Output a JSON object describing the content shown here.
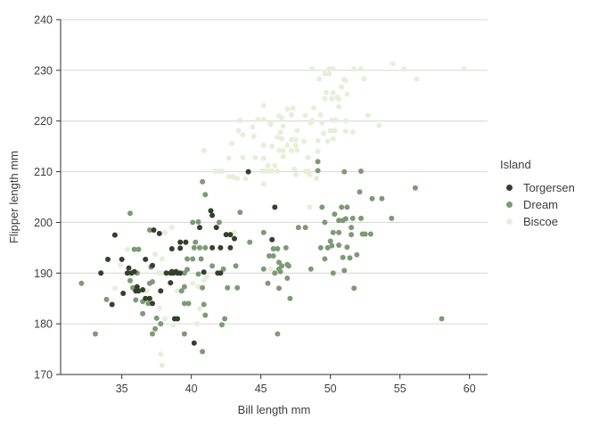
{
  "colors": {
    "background": "#ffffff",
    "grid": "#d6d6d6",
    "axis": "#2f2f2f",
    "text": "#3d3d3d",
    "torgersen": "#33402c",
    "dream": "#7d9a76",
    "biscoe": "#e5efd9"
  },
  "chart_data": {
    "type": "scatter",
    "title": "",
    "xlabel": "Bill length mm",
    "ylabel": "Flipper length mm",
    "xlim": [
      30.6,
      61.3
    ],
    "ylim": [
      170,
      240
    ],
    "x_ticks": [
      35,
      40,
      45,
      50,
      55,
      60
    ],
    "y_ticks": [
      170,
      180,
      190,
      200,
      210,
      220,
      230,
      240
    ],
    "grid": "horizontal-major-only",
    "point_radius_px": 3,
    "legend": {
      "title": "Island",
      "position": "right",
      "entries": [
        {
          "label": "Torgersen",
          "color": "#33402c"
        },
        {
          "label": "Dream",
          "color": "#7d9a76"
        },
        {
          "label": "Biscoe",
          "color": "#e5efd9"
        }
      ]
    },
    "series": [
      {
        "name": "Torgersen",
        "color": "#33402c",
        "points": [
          [
            34.5,
            197.5
          ],
          [
            37.3,
            198.5
          ],
          [
            37.7,
            197.8
          ],
          [
            40.6,
            199.0
          ],
          [
            39.2,
            196.1
          ],
          [
            39.6,
            196.1
          ],
          [
            38.6,
            194.8
          ],
          [
            39.2,
            194.9
          ],
          [
            34.0,
            192.7
          ],
          [
            35.0,
            192.7
          ],
          [
            36.7,
            192.7
          ],
          [
            37.2,
            191.5
          ],
          [
            44.1,
            210.0
          ],
          [
            41.4,
            202.3
          ],
          [
            41.5,
            201.4
          ],
          [
            46.0,
            203.0
          ],
          [
            41.8,
            199.0
          ],
          [
            42.5,
            197.6
          ],
          [
            42.8,
            197.6
          ],
          [
            43.1,
            196.8
          ],
          [
            41.5,
            195.0
          ],
          [
            42.1,
            195.0
          ],
          [
            42.8,
            195.0
          ],
          [
            45.8,
            196.6
          ],
          [
            33.5,
            190.0
          ],
          [
            35.4,
            190.0
          ],
          [
            35.7,
            190.0
          ],
          [
            35.9,
            190.3
          ],
          [
            35.5,
            191.0
          ],
          [
            38.6,
            190.3
          ],
          [
            38.9,
            190.3
          ],
          [
            38.2,
            190.0
          ],
          [
            38.5,
            190.0
          ],
          [
            38.7,
            190.0
          ],
          [
            39.0,
            190.0
          ],
          [
            39.2,
            190.0
          ],
          [
            35.1,
            186.0
          ],
          [
            36.0,
            186.5
          ],
          [
            36.2,
            186.5
          ],
          [
            36.1,
            187.3
          ],
          [
            34.3,
            183.8
          ],
          [
            36.5,
            186.7
          ],
          [
            37.8,
            186.5
          ],
          [
            38.5,
            188.1
          ],
          [
            36.7,
            185.0
          ],
          [
            37.0,
            185.0
          ],
          [
            37.2,
            184.0
          ],
          [
            38.8,
            181.0
          ],
          [
            39.0,
            181.0
          ],
          [
            40.2,
            176.2
          ],
          [
            40.9,
            190.2
          ],
          [
            41.9,
            190.0
          ],
          [
            42.1,
            190.0
          ]
        ]
      },
      {
        "name": "Dream",
        "color": "#7d9a76",
        "points": [
          [
            35.6,
            201.8
          ],
          [
            37.0,
            198.5
          ],
          [
            40.1,
            200.0
          ],
          [
            40.5,
            200.1
          ],
          [
            40.8,
            208.0
          ],
          [
            40.3,
            196.1
          ],
          [
            40.2,
            195.0
          ],
          [
            40.6,
            195.0
          ],
          [
            35.9,
            194.7
          ],
          [
            36.2,
            194.7
          ],
          [
            39.7,
            192.8
          ],
          [
            40.1,
            192.8
          ],
          [
            40.7,
            192.8
          ],
          [
            37.1,
            191.2
          ],
          [
            49.1,
            212.0
          ],
          [
            49.1,
            210.2
          ],
          [
            41.0,
            205.5
          ],
          [
            43.5,
            202.0
          ],
          [
            49.4,
            203.0
          ],
          [
            50.8,
            203.0
          ],
          [
            50.3,
            201.6
          ],
          [
            50.6,
            200.4
          ],
          [
            50.9,
            200.4
          ],
          [
            42.0,
            200.0
          ],
          [
            47.7,
            199.0
          ],
          [
            48.2,
            199.0
          ],
          [
            49.6,
            200.0
          ],
          [
            41.0,
            195.0
          ],
          [
            44.2,
            196.1
          ],
          [
            45.2,
            198.0
          ],
          [
            45.9,
            194.8
          ],
          [
            46.2,
            194.8
          ],
          [
            45.6,
            193.4
          ],
          [
            45.9,
            193.4
          ],
          [
            46.8,
            195.0
          ],
          [
            49.3,
            195.0
          ],
          [
            49.8,
            195.0
          ],
          [
            50.1,
            195.4
          ],
          [
            50.2,
            198.0
          ],
          [
            50.6,
            198.0
          ],
          [
            50.0,
            196.3
          ],
          [
            50.6,
            195.5
          ],
          [
            46.3,
            192.1
          ],
          [
            46.9,
            191.7
          ],
          [
            49.6,
            192.8
          ],
          [
            50.9,
            193.1
          ],
          [
            51.0,
            210.0
          ],
          [
            52.2,
            210.1
          ],
          [
            56.1,
            206.8
          ],
          [
            52.1,
            206.0
          ],
          [
            53.0,
            204.7
          ],
          [
            53.7,
            204.7
          ],
          [
            51.2,
            203.0
          ],
          [
            51.1,
            200.7
          ],
          [
            51.6,
            200.8
          ],
          [
            52.2,
            200.8
          ],
          [
            54.4,
            200.8
          ],
          [
            51.5,
            199.0
          ],
          [
            51.5,
            197.6
          ],
          [
            52.3,
            197.7
          ],
          [
            52.5,
            197.7
          ],
          [
            52.9,
            197.7
          ],
          [
            51.2,
            195.1
          ],
          [
            51.9,
            193.6
          ],
          [
            51.4,
            193.0
          ],
          [
            36.1,
            190.0
          ],
          [
            39.5,
            190.0
          ],
          [
            39.7,
            190.7
          ],
          [
            40.5,
            189.8
          ],
          [
            32.1,
            188.0
          ],
          [
            35.6,
            188.5
          ],
          [
            35.8,
            187.1
          ],
          [
            33.9,
            184.8
          ],
          [
            37.0,
            188.0
          ],
          [
            37.2,
            188.3
          ],
          [
            39.3,
            186.5
          ],
          [
            39.5,
            187.3
          ],
          [
            36.0,
            184.7
          ],
          [
            36.5,
            184.4
          ],
          [
            36.9,
            184.0
          ],
          [
            39.5,
            184.0
          ],
          [
            39.8,
            184.0
          ],
          [
            36.5,
            182.0
          ],
          [
            37.5,
            181.1
          ],
          [
            37.8,
            180.0
          ],
          [
            33.1,
            178.0
          ],
          [
            37.2,
            178.0
          ],
          [
            37.4,
            179.0
          ],
          [
            39.5,
            178.0
          ],
          [
            40.8,
            187.1
          ],
          [
            41.5,
            191.4
          ],
          [
            42.3,
            190.8
          ],
          [
            43.2,
            191.4
          ],
          [
            42.6,
            187.1
          ],
          [
            43.3,
            187.1
          ],
          [
            45.2,
            190.8
          ],
          [
            46.0,
            190.0
          ],
          [
            46.3,
            190.8
          ],
          [
            46.5,
            191.4
          ],
          [
            47.0,
            191.4
          ],
          [
            46.4,
            190.3
          ],
          [
            46.9,
            189.0
          ],
          [
            45.5,
            188.0
          ],
          [
            46.3,
            187.0
          ],
          [
            47.1,
            185.0
          ],
          [
            48.6,
            190.8
          ],
          [
            50.2,
            190.0
          ],
          [
            51.0,
            190.5
          ],
          [
            40.9,
            183.8
          ],
          [
            41.0,
            181.7
          ],
          [
            42.4,
            181.0
          ],
          [
            42.2,
            179.8
          ],
          [
            46.2,
            178.0
          ],
          [
            40.8,
            174.5
          ],
          [
            51.7,
            187.0
          ],
          [
            58.0,
            181.0
          ]
        ]
      },
      {
        "name": "Biscoe",
        "color": "#e5efd9",
        "points": [
          [
            38.1,
            198.0
          ],
          [
            38.6,
            199.0
          ],
          [
            35.4,
            194.7
          ],
          [
            37.4,
            193.7
          ],
          [
            37.9,
            192.8
          ],
          [
            34.9,
            191.6
          ],
          [
            42.7,
            212.7
          ],
          [
            43.7,
            212.8
          ],
          [
            44.6,
            212.8
          ],
          [
            45.5,
            211.2
          ],
          [
            46.0,
            211.2
          ],
          [
            45.2,
            212.6
          ],
          [
            46.6,
            213.0
          ],
          [
            48.4,
            212.8
          ],
          [
            41.7,
            210.1
          ],
          [
            42.0,
            210.1
          ],
          [
            42.2,
            210.1
          ],
          [
            45.1,
            210.1
          ],
          [
            45.3,
            210.1
          ],
          [
            45.6,
            210.1
          ],
          [
            45.8,
            210.1
          ],
          [
            46.2,
            210.1
          ],
          [
            47.4,
            210.5
          ],
          [
            48.2,
            210.1
          ],
          [
            48.4,
            210.1
          ],
          [
            42.7,
            209.0
          ],
          [
            43.0,
            209.0
          ],
          [
            43.3,
            208.7
          ],
          [
            43.9,
            208.6
          ],
          [
            45.2,
            207.6
          ],
          [
            47.5,
            209.4
          ],
          [
            48.5,
            209.4
          ],
          [
            49.0,
            208.7
          ],
          [
            48.5,
            203.0
          ],
          [
            43.1,
            198.0
          ],
          [
            48.7,
            230.3
          ],
          [
            49.9,
            230.3
          ],
          [
            50.2,
            230.3
          ],
          [
            49.6,
            229.3
          ],
          [
            49.9,
            229.3
          ],
          [
            49.2,
            228.3
          ],
          [
            51.0,
            228.2
          ],
          [
            50.8,
            226.7
          ],
          [
            49.7,
            225.6
          ],
          [
            50.2,
            225.6
          ],
          [
            49.6,
            224.4
          ],
          [
            50.1,
            224.4
          ],
          [
            50.5,
            224.7
          ],
          [
            50.6,
            224.3
          ],
          [
            45.2,
            223.1
          ],
          [
            46.9,
            222.4
          ],
          [
            47.3,
            222.5
          ],
          [
            48.8,
            222.6
          ],
          [
            50.6,
            222.8
          ],
          [
            48.2,
            221.1
          ],
          [
            49.3,
            221.2
          ],
          [
            43.5,
            220.1
          ],
          [
            44.8,
            220.3
          ],
          [
            45.2,
            220.3
          ],
          [
            45.7,
            219.7
          ],
          [
            46.3,
            221.0
          ],
          [
            46.5,
            220.6
          ],
          [
            47.2,
            221.2
          ],
          [
            48.6,
            219.6
          ],
          [
            48.7,
            220.1
          ],
          [
            49.4,
            219.6
          ],
          [
            50.1,
            220.2
          ],
          [
            50.4,
            220.2
          ],
          [
            44.4,
            218.8
          ],
          [
            45.7,
            219.3
          ],
          [
            46.6,
            219.0
          ],
          [
            43.4,
            218.1
          ],
          [
            43.7,
            217.3
          ],
          [
            46.4,
            217.8
          ],
          [
            47.6,
            218.1
          ],
          [
            49.1,
            216.1
          ],
          [
            49.5,
            217.6
          ],
          [
            50.0,
            218.1
          ],
          [
            50.3,
            218.1
          ],
          [
            44.5,
            217.0
          ],
          [
            46.2,
            216.8
          ],
          [
            46.5,
            216.5
          ],
          [
            47.2,
            216.3
          ],
          [
            47.5,
            216.3
          ],
          [
            48.1,
            216.0
          ],
          [
            49.8,
            216.0
          ],
          [
            50.2,
            216.5
          ],
          [
            42.9,
            215.6
          ],
          [
            45.2,
            215.2
          ],
          [
            45.8,
            215.0
          ],
          [
            46.9,
            215.2
          ],
          [
            47.5,
            215.2
          ],
          [
            46.3,
            214.2
          ],
          [
            46.6,
            214.2
          ],
          [
            47.2,
            214.2
          ],
          [
            47.6,
            214.2
          ],
          [
            49.1,
            214.0
          ],
          [
            54.5,
            231.3
          ],
          [
            51.7,
            230.3
          ],
          [
            52.2,
            230.3
          ],
          [
            55.3,
            230.3
          ],
          [
            59.6,
            230.3
          ],
          [
            52.4,
            228.3
          ],
          [
            56.2,
            228.3
          ],
          [
            51.1,
            228.0
          ],
          [
            51.2,
            225.3
          ],
          [
            52.7,
            221.1
          ],
          [
            51.1,
            220.0
          ],
          [
            53.5,
            219.1
          ],
          [
            51.1,
            218.0
          ],
          [
            51.6,
            217.8
          ],
          [
            34.5,
            187.0
          ],
          [
            36.8,
            186.5
          ],
          [
            39.0,
            186.5
          ],
          [
            40.1,
            188.0
          ],
          [
            40.5,
            187.3
          ],
          [
            37.7,
            183.1
          ],
          [
            40.6,
            183.0
          ],
          [
            38.1,
            181.0
          ],
          [
            38.7,
            179.7
          ],
          [
            40.4,
            180.0
          ],
          [
            37.8,
            174.0
          ],
          [
            37.9,
            171.8
          ],
          [
            37.7,
            190.0
          ],
          [
            37.9,
            190.0
          ],
          [
            41.1,
            189.3
          ],
          [
            40.9,
            188.6
          ],
          [
            45.7,
            190.8
          ],
          [
            40.9,
            214.2
          ]
        ]
      }
    ]
  }
}
